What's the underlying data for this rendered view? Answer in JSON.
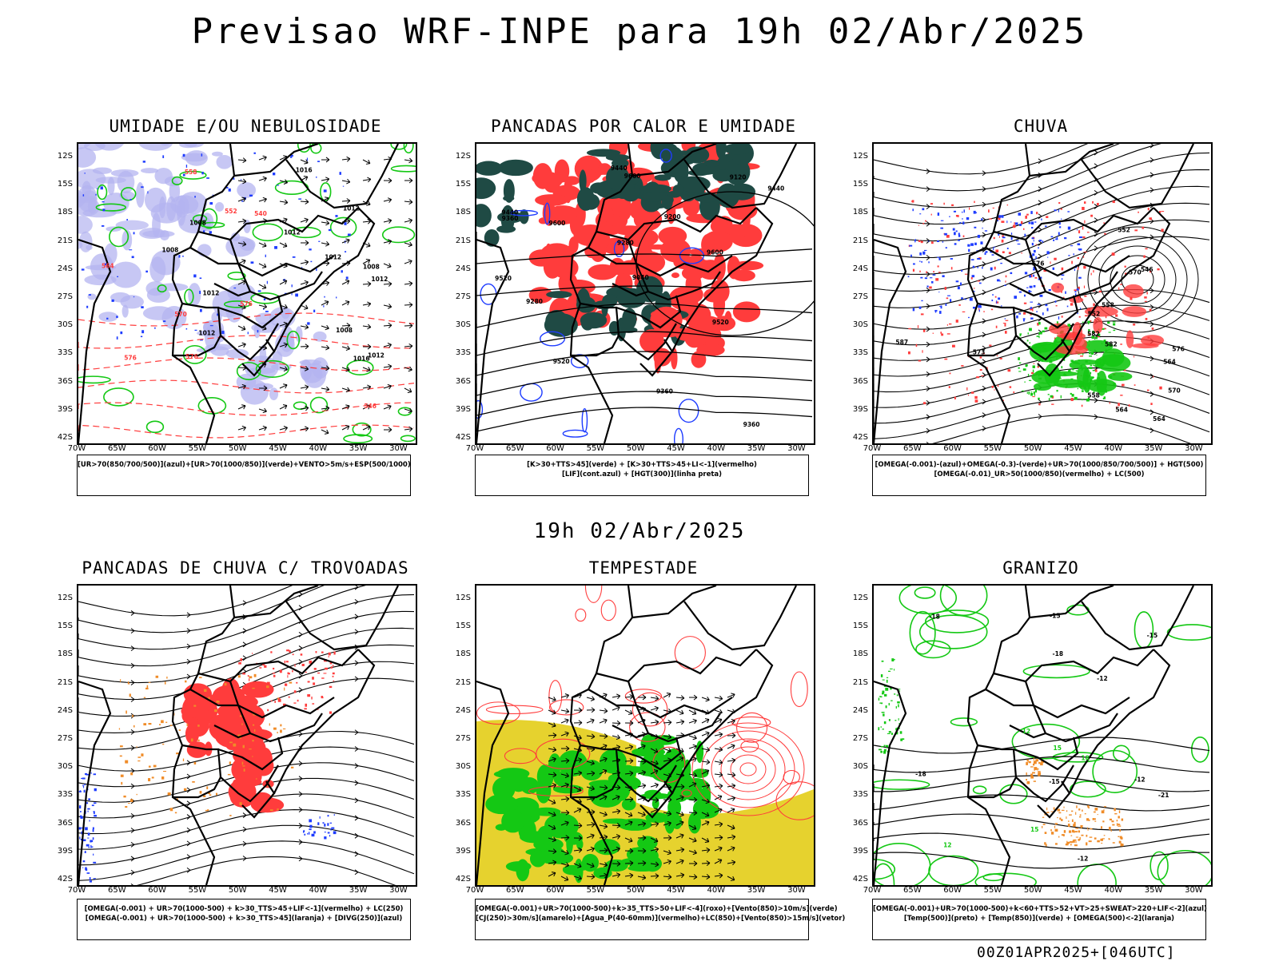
{
  "header": {
    "title": "Previsao WRF-INPE  para 19h 02/Abr/2025"
  },
  "middle_date": "19h 02/Abr/2025",
  "footer": "00Z01APR2025+[046UTC]",
  "axes": {
    "lat_labels": [
      "12S",
      "15S",
      "18S",
      "21S",
      "24S",
      "27S",
      "30S",
      "33S",
      "36S",
      "39S",
      "42S"
    ],
    "lon_labels": [
      "70W",
      "65W",
      "60W",
      "55W",
      "50W",
      "45W",
      "40W",
      "35W",
      "30W"
    ]
  },
  "colors": {
    "blue": "#1e3cff",
    "lavender": "#b4b4f0",
    "green": "#14c814",
    "red": "#ff3c3c",
    "dark_teal": "#1f4a44",
    "yellow": "#e6d22e",
    "orange": "#f08c28",
    "black": "#000000"
  },
  "panels": [
    {
      "id": "umidade",
      "title": "UMIDADE E/OU NEBULOSIDADE",
      "legend": [
        "[UR>70(850/700/500)](azul)+[UR>70(1000/850)](verde)+VENTO>5m/s+ESP(500/1000)"
      ]
    },
    {
      "id": "pancadas",
      "title": "PANCADAS POR CALOR E UMIDADE",
      "legend": [
        "[K>30+TTS>45](verde) + [K>30+TTS>45+LI<-1](vermelho)",
        "[LIF](cont.azul) + [HGT(300)](linha preta)"
      ]
    },
    {
      "id": "chuva",
      "title": "CHUVA",
      "legend": [
        "[OMEGA(-0.001)-(azul)+OMEGA(-0.3)-(verde)+UR>70(1000/850/700/500)] + HGT(500)",
        "[OMEGA(-0.01)_UR>50(1000/850)(vermelho) + LC(500)"
      ]
    },
    {
      "id": "trovoadas",
      "title": "PANCADAS DE CHUVA C/ TROVOADAS",
      "legend": [
        "[OMEGA(-0.001) + UR>70(1000-500) + k>30_TTS>45+LIF<-1](vermelho) + LC(250)",
        "[OMEGA(-0.001) + UR>70(1000-500) + k>30_TTS>45](laranja) + [DIVG(250)](azul)"
      ]
    },
    {
      "id": "tempestade",
      "title": "TEMPESTADE",
      "legend": [
        "[OMEGA(-0.001)+UR>70(1000-500)+k>35_TTS>50+LIF<-4](roxo)+[Vento(850)>10m/s](verde)",
        "[CJ(250)>30m/s](amarelo)+[Agua_P(40-60mm)](vermelho)+LC(850)+[Vento(850)>15m/s](vetor)"
      ]
    },
    {
      "id": "granizo",
      "title": "GRANIZO",
      "legend": [
        "[OMEGA(-0.001)+UR>70(1000-500)+k<60+TTS>52+VT>25+SWEAT>220+LIF<-2](azul)",
        "[Temp(500)](preto) + [Temp(850)](verde) + [OMEGA(500)<-2](laranja)"
      ]
    }
  ],
  "contour_labels": {
    "umidade": [
      "1008",
      "1008",
      "1012",
      "1012",
      "1012",
      "1012",
      "1012",
      "1016",
      "1016",
      "1012",
      "1008",
      "1008",
      "1012",
      "576",
      "576",
      "576",
      "570",
      "564",
      "558",
      "552",
      "546",
      "540"
    ],
    "pancadas": [
      "9520",
      "9600",
      "9600",
      "9440",
      "9440",
      "9360",
      "9280",
      "9200",
      "9280",
      "9120",
      "9040",
      "9520",
      "9440",
      "9360",
      "9600",
      "9520",
      "9360"
    ],
    "chuva": [
      "582",
      "576",
      "570",
      "564",
      "558",
      "552",
      "546",
      "576",
      "570",
      "564",
      "558",
      "552",
      "587",
      "582",
      "573",
      "564"
    ],
    "granizo": [
      "-12",
      "-15",
      "-18",
      "-21",
      "-12",
      "-15",
      "-18",
      "12",
      "15",
      "18",
      "15",
      "12",
      "-12",
      "-15",
      "-18"
    ]
  }
}
